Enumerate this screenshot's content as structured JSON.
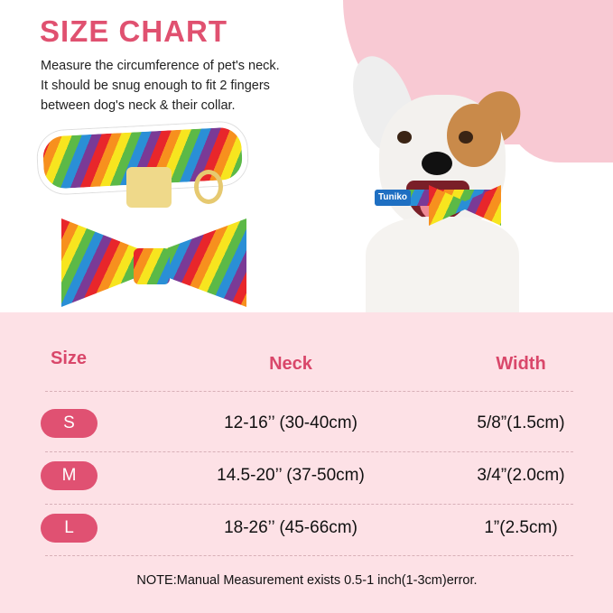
{
  "header": {
    "title": "SIZE CHART",
    "description": [
      "Measure the circumference of pet's neck.",
      "It should be snug enough to fit 2 fingers",
      "between dog's neck & their collar."
    ]
  },
  "product": {
    "collar_brand": "Tuniko"
  },
  "table": {
    "headers": [
      "Size",
      "Neck",
      "Width"
    ],
    "rows": [
      {
        "size": "S",
        "neck": "12-16’’  (30-40cm)",
        "width": "5/8”(1.5cm)"
      },
      {
        "size": "M",
        "neck": "14.5-20’’  (37-50cm)",
        "width": "3/4”(2.0cm)"
      },
      {
        "size": "L",
        "neck": "18-26’’  (45-66cm)",
        "width": "1”(2.5cm)"
      }
    ]
  },
  "note": "NOTE:Manual Measurement exists 0.5-1 inch(1-3cm)error.",
  "colors": {
    "accent": "#e05172",
    "background_pink": "#fde1e6"
  }
}
